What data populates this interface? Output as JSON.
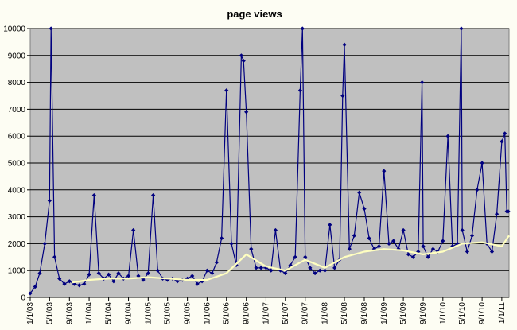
{
  "chart_data": {
    "type": "line",
    "title": "page views",
    "xlabel": "",
    "ylabel": "",
    "ylim": [
      0,
      10000
    ],
    "xlim": [
      "2003-01-01",
      "2011-02-15"
    ],
    "grid": true,
    "legend": "none",
    "y_ticks": [
      0,
      1000,
      2000,
      3000,
      4000,
      5000,
      6000,
      7000,
      8000,
      9000,
      10000
    ],
    "y_tick_labels": [
      "0",
      "1000",
      "2000",
      "3000",
      "4000",
      "5000",
      "6000",
      "7000",
      "8000",
      "9000",
      "10000"
    ],
    "x_ticks": [
      "2003-01-01",
      "2003-05-01",
      "2003-09-01",
      "2004-01-01",
      "2004-05-01",
      "2004-09-01",
      "2005-01-01",
      "2005-05-01",
      "2005-09-01",
      "2006-01-01",
      "2006-05-01",
      "2006-09-01",
      "2007-01-01",
      "2007-05-01",
      "2007-09-01",
      "2008-01-01",
      "2008-05-01",
      "2008-09-01",
      "2009-01-01",
      "2009-05-01",
      "2009-09-01",
      "2010-01-01",
      "2010-05-01",
      "2010-09-01",
      "2011-01-01"
    ],
    "x_tick_labels": [
      "1/1/03",
      "5/1/03",
      "9/1/03",
      "1/1/04",
      "5/1/04",
      "9/1/04",
      "1/1/05",
      "5/1/05",
      "9/1/05",
      "1/1/06",
      "5/1/06",
      "9/1/06",
      "1/1/07",
      "5/1/07",
      "9/1/07",
      "1/1/08",
      "5/1/08",
      "9/1/08",
      "1/1/09",
      "5/1/09",
      "9/1/09",
      "1/1/10",
      "5/1/10",
      "9/1/10",
      "1/1/11"
    ],
    "series": [
      {
        "color": "#00007f",
        "marker": "diamond",
        "x": [
          "2003-01-01",
          "2003-02-01",
          "2003-03-01",
          "2003-04-01",
          "2003-05-01",
          "2003-05-10",
          "2003-06-01",
          "2003-07-01",
          "2003-08-01",
          "2003-09-01",
          "2003-10-01",
          "2003-11-01",
          "2003-12-01",
          "2004-01-01",
          "2004-02-01",
          "2004-03-01",
          "2004-04-01",
          "2004-05-01",
          "2004-06-01",
          "2004-07-01",
          "2004-08-01",
          "2004-09-01",
          "2004-10-01",
          "2004-11-01",
          "2004-12-01",
          "2005-01-01",
          "2005-02-01",
          "2005-03-01",
          "2005-04-01",
          "2005-05-01",
          "2005-06-01",
          "2005-07-01",
          "2005-08-01",
          "2005-09-01",
          "2005-10-01",
          "2005-11-01",
          "2005-12-01",
          "2006-01-01",
          "2006-02-01",
          "2006-03-01",
          "2006-04-01",
          "2006-05-01",
          "2006-06-01",
          "2006-07-01",
          "2006-08-01",
          "2006-08-15",
          "2006-09-01",
          "2006-10-01",
          "2006-11-01",
          "2006-12-01",
          "2007-01-01",
          "2007-02-01",
          "2007-03-01",
          "2007-04-01",
          "2007-05-01",
          "2007-06-01",
          "2007-07-01",
          "2007-08-01",
          "2007-08-15",
          "2007-09-01",
          "2007-10-01",
          "2007-11-01",
          "2007-12-01",
          "2008-01-01",
          "2008-02-01",
          "2008-03-01",
          "2008-04-01",
          "2008-04-20",
          "2008-05-01",
          "2008-06-01",
          "2008-07-01",
          "2008-08-01",
          "2008-09-01",
          "2008-10-01",
          "2008-11-01",
          "2008-12-01",
          "2009-01-01",
          "2009-02-01",
          "2009-03-01",
          "2009-04-01",
          "2009-05-01",
          "2009-06-01",
          "2009-07-01",
          "2009-08-01",
          "2009-08-25",
          "2009-09-01",
          "2009-10-01",
          "2009-11-01",
          "2009-12-01",
          "2010-01-01",
          "2010-02-01",
          "2010-03-01",
          "2010-04-01",
          "2010-04-25",
          "2010-05-01",
          "2010-06-01",
          "2010-07-01",
          "2010-08-01",
          "2010-09-01",
          "2010-10-01",
          "2010-11-01",
          "2010-12-01",
          "2011-01-01",
          "2011-01-20",
          "2011-02-01",
          "2011-02-10"
        ],
        "y": [
          150,
          400,
          900,
          2000,
          3600,
          10000,
          1500,
          700,
          500,
          600,
          500,
          450,
          500,
          850,
          3800,
          900,
          700,
          850,
          600,
          900,
          700,
          800,
          2500,
          800,
          650,
          900,
          3800,
          1000,
          700,
          650,
          700,
          600,
          650,
          700,
          800,
          500,
          600,
          1000,
          900,
          1300,
          2200,
          7700,
          2000,
          1200,
          9000,
          8800,
          6900,
          1800,
          1100,
          1100,
          1100,
          1000,
          2500,
          1000,
          900,
          1200,
          1500,
          7700,
          10000,
          1500,
          1100,
          900,
          1000,
          1000,
          2700,
          1100,
          1400,
          7500,
          9400,
          1800,
          2300,
          3900,
          3300,
          2200,
          1800,
          1900,
          4700,
          2000,
          2100,
          1800,
          2500,
          1600,
          1500,
          1700,
          8000,
          1900,
          1500,
          1800,
          1700,
          2100,
          6000,
          1900,
          2000,
          10000,
          2500,
          1700,
          2300,
          4000,
          5000,
          2000,
          1700,
          3100,
          5800,
          6100,
          3200,
          3200
        ]
      },
      {
        "name": "",
        "color": "#ffffc0",
        "x": [
          "2003-09-15",
          "2004-01-01",
          "2004-05-01",
          "2004-09-01",
          "2005-01-01",
          "2005-05-01",
          "2005-09-01",
          "2006-01-01",
          "2006-05-01",
          "2006-09-01",
          "2007-01-01",
          "2007-05-01",
          "2007-09-01",
          "2008-01-01",
          "2008-05-01",
          "2008-09-01",
          "2009-01-01",
          "2009-05-01",
          "2009-09-01",
          "2010-01-01",
          "2010-05-01",
          "2010-09-01",
          "2011-01-01",
          "2011-02-15"
        ],
        "y": [
          550,
          650,
          700,
          700,
          750,
          700,
          650,
          650,
          900,
          1600,
          1150,
          1000,
          1400,
          1100,
          1500,
          1700,
          1800,
          1750,
          1600,
          1700,
          2000,
          2050,
          1900,
          2300
        ]
      }
    ]
  }
}
